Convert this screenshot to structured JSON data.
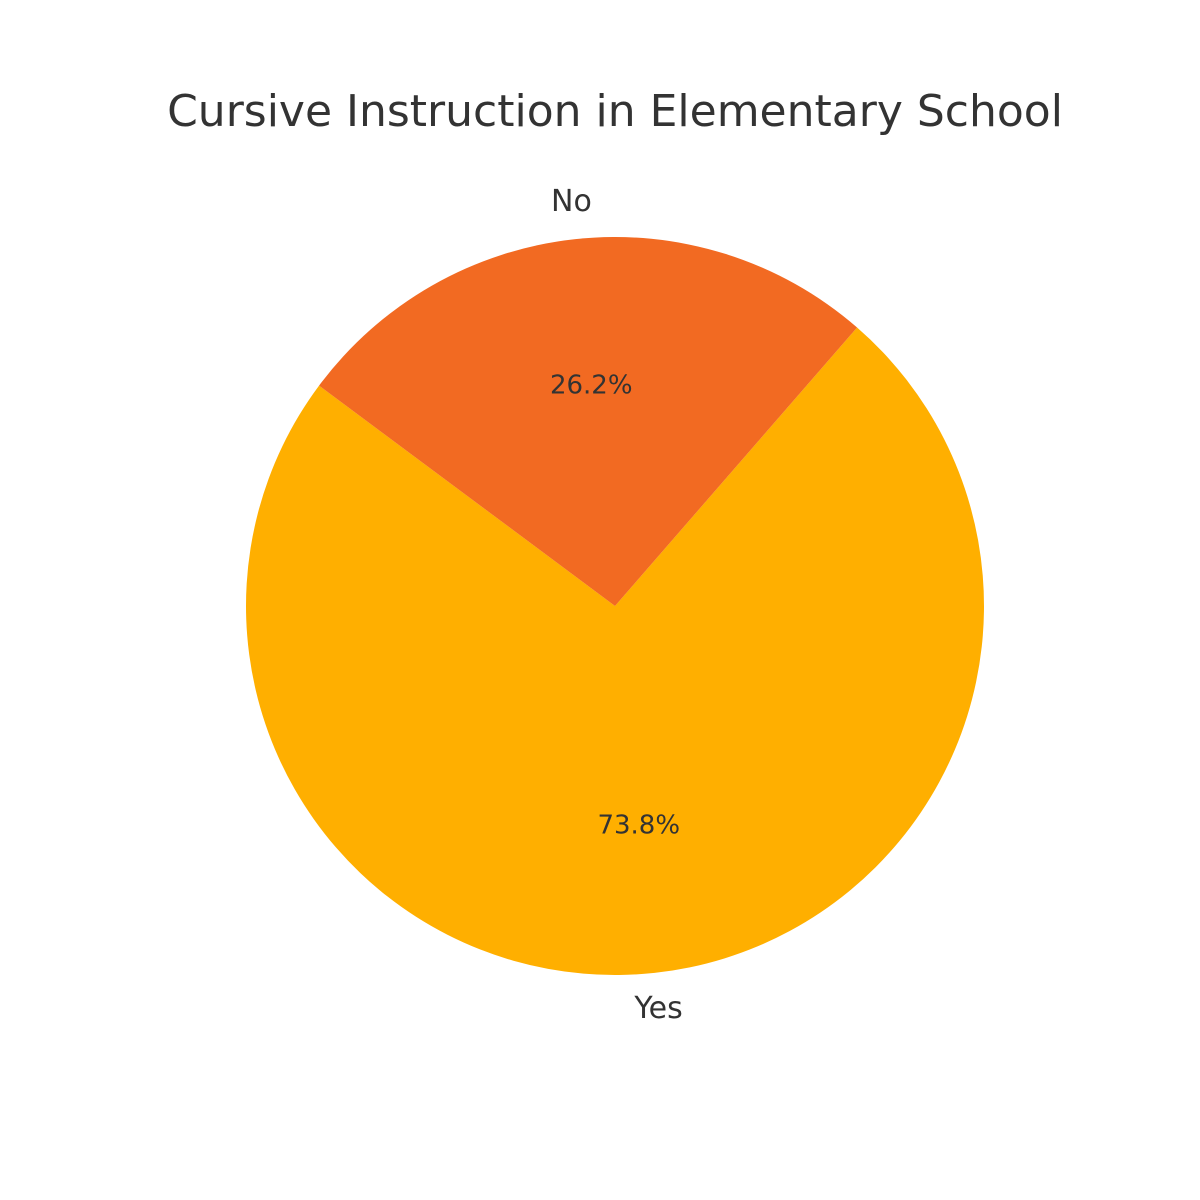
{
  "chart_data": {
    "type": "pie",
    "title": "Cursive Instruction in Elementary School",
    "categories": [
      "Yes",
      "No"
    ],
    "values": [
      73.8,
      26.2
    ],
    "value_labels": [
      "73.8%",
      "26.2%"
    ],
    "colors": [
      "#FFAF00",
      "#F26A22"
    ],
    "legend": "none"
  }
}
